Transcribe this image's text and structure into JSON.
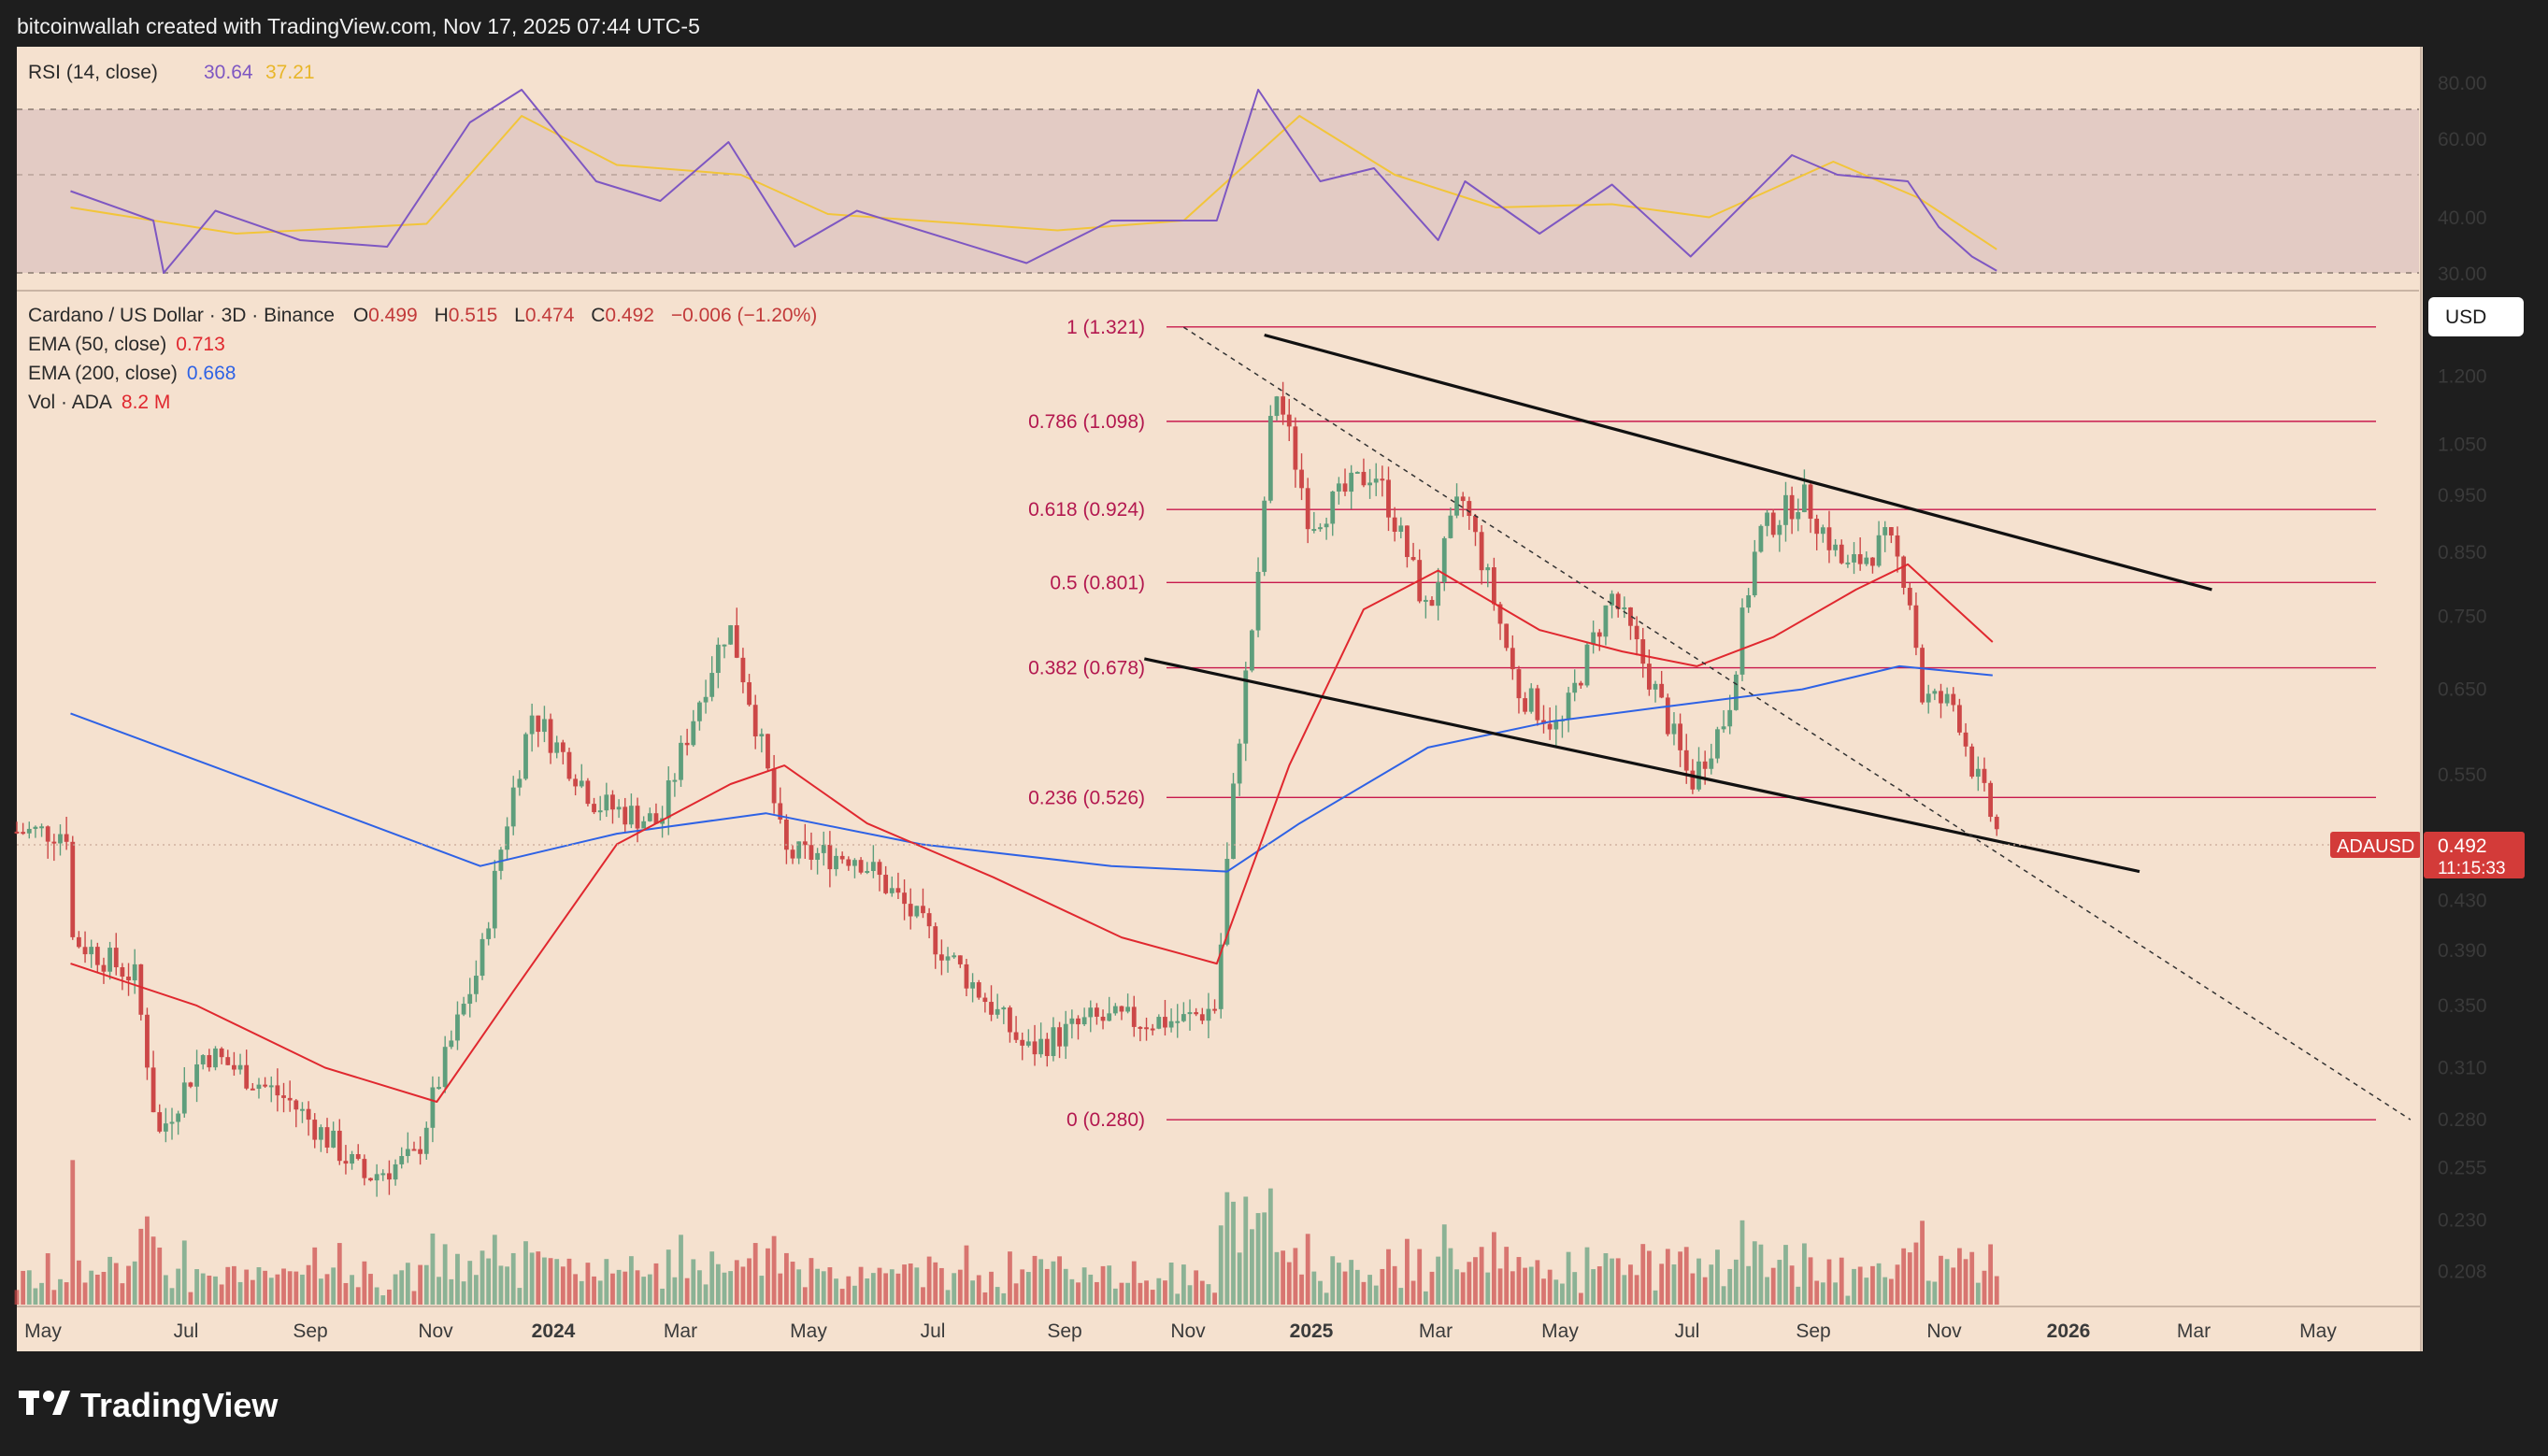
{
  "header": {
    "attribution": "bitcoinwallah created with TradingView.com, Nov 17, 2025 07:44 UTC-5"
  },
  "brand": {
    "name": "TradingView"
  },
  "colors": {
    "background": "#f5e1cf",
    "frame": "#1e1e1e",
    "up": "#5e9e7c",
    "down": "#cc4747",
    "ema50": "#e0282f",
    "ema200": "#2e62e5",
    "rsi": "#7e57c2",
    "rsi_ma": "#f2c53a",
    "fib": "#c8194d",
    "price_tag": "#d33b39"
  },
  "rsi_panel": {
    "legend": {
      "label": "RSI (14, close)",
      "value": "30.64",
      "ma_value": "37.21"
    },
    "ticks": [
      "80.00",
      "60.00",
      "40.00",
      "30.00"
    ]
  },
  "price_panel": {
    "legend": {
      "symbol": "Cardano / US Dollar · 3D · Binance",
      "o_label": "O",
      "o": "0.499",
      "h_label": "H",
      "h": "0.515",
      "l_label": "L",
      "l": "0.474",
      "c_label": "C",
      "c": "0.492",
      "change": "−0.006 (−1.20%)",
      "ema50_label": "EMA (50, close)",
      "ema50": "0.713",
      "ema200_label": "EMA (200, close)",
      "ema200": "0.668",
      "vol_label": "Vol · ADA",
      "vol": "8.2 M"
    },
    "currency": "USD",
    "ticks": [
      "1.200",
      "1.050",
      "0.950",
      "0.850",
      "0.750",
      "0.650",
      "0.550",
      "0.430",
      "0.390",
      "0.350",
      "0.310",
      "0.280",
      "0.255",
      "0.230",
      "0.208"
    ],
    "price_tag": {
      "symbol": "ADAUSD",
      "price": "0.492",
      "countdown": "11:15:33"
    }
  },
  "time_axis": [
    "May",
    "Jul",
    "Sep",
    "Nov",
    "2024",
    "Mar",
    "May",
    "Jul",
    "Sep",
    "Nov",
    "2025",
    "Mar",
    "May",
    "Jul",
    "Sep",
    "Nov",
    "2026",
    "Mar",
    "May"
  ],
  "chart_data": {
    "type": "candlestick",
    "scale": "log",
    "ylim": [
      0.195,
      1.55
    ],
    "fib_levels": [
      {
        "label": "1 (1.321)",
        "value": 1.321
      },
      {
        "label": "0.786 (1.098)",
        "value": 1.098
      },
      {
        "label": "0.618 (0.924)",
        "value": 0.924
      },
      {
        "label": "0.5 (0.801)",
        "value": 0.801
      },
      {
        "label": "0.382 (0.678)",
        "value": 0.678
      },
      {
        "label": "0.236 (0.526)",
        "value": 0.526
      },
      {
        "label": "0 (0.280)",
        "value": 0.28
      }
    ],
    "price_path": [
      [
        "2023-05-01",
        0.4
      ],
      [
        "2023-06-01",
        0.37
      ],
      [
        "2023-06-12",
        0.27
      ],
      [
        "2023-07-05",
        0.32
      ],
      [
        "2023-08-15",
        0.29
      ],
      [
        "2023-09-20",
        0.25
      ],
      [
        "2023-10-15",
        0.26
      ],
      [
        "2023-11-15",
        0.38
      ],
      [
        "2023-12-10",
        0.62
      ],
      [
        "2024-01-10",
        0.52
      ],
      [
        "2024-02-10",
        0.5
      ],
      [
        "2024-03-14",
        0.74
      ],
      [
        "2024-04-10",
        0.47
      ],
      [
        "2024-05-15",
        0.47
      ],
      [
        "2024-06-20",
        0.4
      ],
      [
        "2024-08-05",
        0.32
      ],
      [
        "2024-09-05",
        0.34
      ],
      [
        "2024-10-20",
        0.34
      ],
      [
        "2024-11-05",
        0.35
      ],
      [
        "2024-11-25",
        0.8
      ],
      [
        "2024-12-03",
        1.18
      ],
      [
        "2024-12-20",
        0.9
      ],
      [
        "2025-01-20",
        1.0
      ],
      [
        "2025-02-15",
        0.75
      ],
      [
        "2025-03-03",
        0.95
      ],
      [
        "2025-03-30",
        0.65
      ],
      [
        "2025-04-20",
        0.6
      ],
      [
        "2025-05-15",
        0.78
      ],
      [
        "2025-06-22",
        0.54
      ],
      [
        "2025-07-10",
        0.62
      ],
      [
        "2025-07-25",
        0.88
      ],
      [
        "2025-08-15",
        0.95
      ],
      [
        "2025-09-05",
        0.82
      ],
      [
        "2025-09-25",
        0.87
      ],
      [
        "2025-10-05",
        0.8
      ],
      [
        "2025-10-12",
        0.64
      ],
      [
        "2025-10-28",
        0.63
      ],
      [
        "2025-11-05",
        0.56
      ],
      [
        "2025-11-17",
        0.492
      ]
    ],
    "ema50_path": [
      [
        "2023-05-01",
        0.38
      ],
      [
        "2023-07-01",
        0.35
      ],
      [
        "2023-09-01",
        0.31
      ],
      [
        "2023-10-25",
        0.29
      ],
      [
        "2023-12-01",
        0.36
      ],
      [
        "2024-01-20",
        0.48
      ],
      [
        "2024-03-15",
        0.54
      ],
      [
        "2024-04-10",
        0.56
      ],
      [
        "2024-05-20",
        0.5
      ],
      [
        "2024-07-20",
        0.45
      ],
      [
        "2024-09-20",
        0.4
      ],
      [
        "2024-11-05",
        0.38
      ],
      [
        "2024-12-10",
        0.56
      ],
      [
        "2025-01-15",
        0.76
      ],
      [
        "2025-02-20",
        0.82
      ],
      [
        "2025-04-10",
        0.73
      ],
      [
        "2025-05-20",
        0.7
      ],
      [
        "2025-06-25",
        0.68
      ],
      [
        "2025-08-01",
        0.72
      ],
      [
        "2025-09-10",
        0.79
      ],
      [
        "2025-10-05",
        0.83
      ],
      [
        "2025-11-15",
        0.713
      ]
    ],
    "ema200_path": [
      [
        "2023-05-01",
        0.62
      ],
      [
        "2023-08-01",
        0.54
      ],
      [
        "2023-11-15",
        0.46
      ],
      [
        "2024-01-20",
        0.49
      ],
      [
        "2024-04-01",
        0.51
      ],
      [
        "2024-06-15",
        0.48
      ],
      [
        "2024-09-15",
        0.46
      ],
      [
        "2024-11-10",
        0.455
      ],
      [
        "2024-12-15",
        0.5
      ],
      [
        "2025-02-15",
        0.58
      ],
      [
        "2025-04-15",
        0.61
      ],
      [
        "2025-06-15",
        0.63
      ],
      [
        "2025-08-15",
        0.65
      ],
      [
        "2025-10-01",
        0.68
      ],
      [
        "2025-11-15",
        0.668
      ]
    ],
    "rsi_path": [
      [
        "2023-05-01",
        55
      ],
      [
        "2023-06-10",
        46
      ],
      [
        "2023-06-15",
        30
      ],
      [
        "2023-07-10",
        49
      ],
      [
        "2023-08-20",
        40
      ],
      [
        "2023-10-01",
        38
      ],
      [
        "2023-11-10",
        76
      ],
      [
        "2023-12-05",
        86
      ],
      [
        "2024-01-10",
        58
      ],
      [
        "2024-02-10",
        52
      ],
      [
        "2024-03-14",
        70
      ],
      [
        "2024-04-15",
        38
      ],
      [
        "2024-05-15",
        49
      ],
      [
        "2024-08-05",
        33
      ],
      [
        "2024-09-15",
        46
      ],
      [
        "2024-11-05",
        46
      ],
      [
        "2024-11-25",
        86
      ],
      [
        "2024-12-25",
        58
      ],
      [
        "2025-01-20",
        62
      ],
      [
        "2025-02-20",
        40
      ],
      [
        "2025-03-05",
        58
      ],
      [
        "2025-04-10",
        42
      ],
      [
        "2025-05-15",
        57
      ],
      [
        "2025-06-22",
        35
      ],
      [
        "2025-08-10",
        66
      ],
      [
        "2025-09-01",
        60
      ],
      [
        "2025-10-05",
        58
      ],
      [
        "2025-10-20",
        44
      ],
      [
        "2025-11-05",
        35
      ],
      [
        "2025-11-17",
        30.64
      ]
    ],
    "rsi_ma_path": [
      [
        "2023-05-01",
        50
      ],
      [
        "2023-07-20",
        42
      ],
      [
        "2023-10-20",
        45
      ],
      [
        "2023-12-05",
        78
      ],
      [
        "2024-01-20",
        63
      ],
      [
        "2024-03-20",
        60
      ],
      [
        "2024-05-01",
        48
      ],
      [
        "2024-08-20",
        43
      ],
      [
        "2024-10-20",
        46
      ],
      [
        "2024-12-15",
        78
      ],
      [
        "2025-01-30",
        60
      ],
      [
        "2025-03-20",
        50
      ],
      [
        "2025-05-15",
        51
      ],
      [
        "2025-07-01",
        47
      ],
      [
        "2025-08-30",
        64
      ],
      [
        "2025-10-10",
        53
      ],
      [
        "2025-11-17",
        37.21
      ]
    ],
    "channel": {
      "upper": [
        [
          "2024-11-28",
          1.3
        ],
        [
          "2026-03-01",
          0.79
        ]
      ],
      "lower": [
        [
          "2024-10-01",
          0.69
        ],
        [
          "2026-01-25",
          0.455
        ]
      ]
    },
    "dotted_trendline": [
      [
        "2024-10-20",
        1.32
      ],
      [
        "2026-06-05",
        0.28
      ]
    ]
  }
}
